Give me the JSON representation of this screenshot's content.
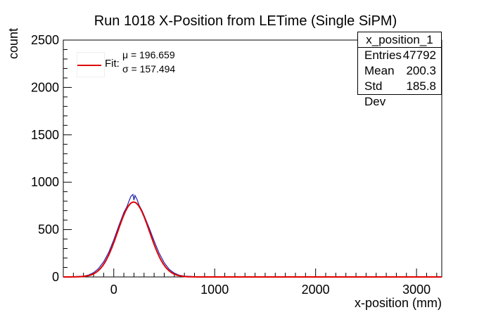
{
  "chart_data": {
    "type": "line",
    "title": "Run 1018 X-Position from LETime (Single SiPM)",
    "xlabel": "x-position (mm)",
    "ylabel": "count",
    "xlim": [
      -500,
      3250
    ],
    "ylim": [
      0,
      2500
    ],
    "xticks": [
      0,
      1000,
      2000,
      3000
    ],
    "yticks": [
      0,
      500,
      1000,
      1500,
      2000,
      2500
    ],
    "xtick_labels": [
      "0",
      "1000",
      "2000",
      "3000"
    ],
    "ytick_labels": [
      "0",
      "500",
      "1000",
      "1500",
      "2000",
      "2500"
    ],
    "series": [
      {
        "name": "x_position_1",
        "color": "#2020b0",
        "x": [
          -400,
          -300,
          -250,
          -200,
          -150,
          -100,
          -50,
          0,
          50,
          100,
          130,
          150,
          170,
          190,
          200,
          210,
          230,
          250,
          280,
          300,
          350,
          400,
          450,
          500,
          550,
          600,
          650,
          700,
          800,
          900,
          1000,
          1500,
          2000,
          2500,
          3000,
          3250
        ],
        "values": [
          2,
          8,
          20,
          45,
          90,
          160,
          260,
          390,
          540,
          680,
          740,
          800,
          850,
          870,
          810,
          860,
          820,
          760,
          700,
          650,
          520,
          380,
          250,
          150,
          80,
          40,
          18,
          8,
          3,
          1,
          0,
          0,
          0,
          0,
          0,
          0
        ]
      }
    ],
    "fit": {
      "name": "Fit",
      "color": "#e00000",
      "mu": 196.659,
      "sigma": 157.494,
      "amplitude": 790
    },
    "legend": {
      "label": "Fit:",
      "mu_text": "μ = 196.659",
      "sigma_text": "σ = 157.494"
    },
    "stats": {
      "name": "x_position_1",
      "rows": [
        {
          "label": "Entries",
          "value": "47792"
        },
        {
          "label": "Mean",
          "value": "200.3"
        },
        {
          "label": "Std Dev",
          "value": "185.8"
        }
      ]
    },
    "grid": false
  }
}
